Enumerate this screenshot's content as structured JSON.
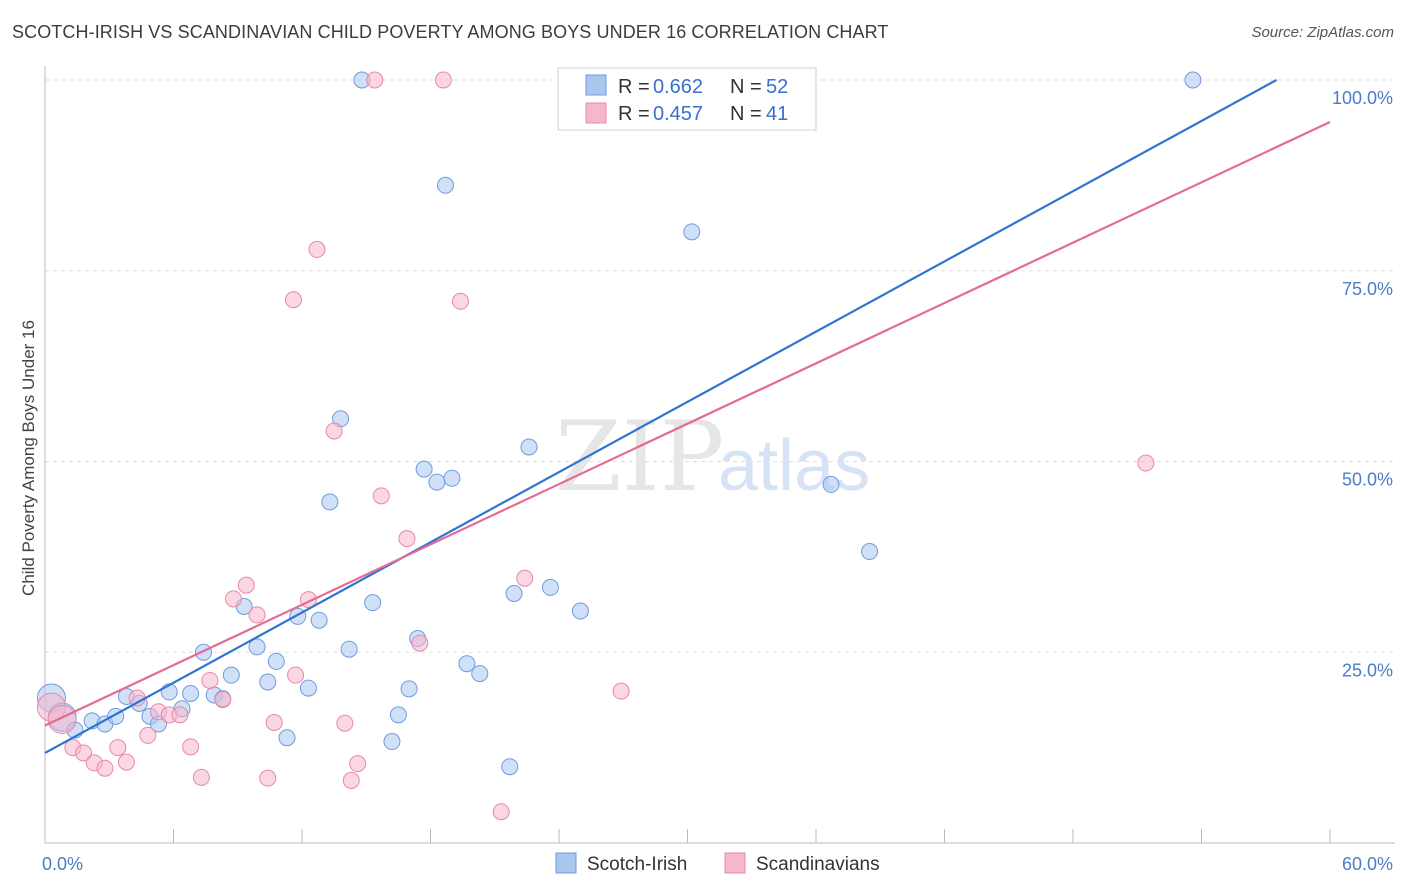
{
  "title": "SCOTCH-IRISH VS SCANDINAVIAN CHILD POVERTY AMONG BOYS UNDER 16 CORRELATION CHART",
  "source": "Source: ZipAtlas.com",
  "watermark": {
    "zip": "ZIP",
    "atlas": "atlas"
  },
  "legend": {
    "rows": [
      {
        "r_label": "R =",
        "r_value": "0.662",
        "n_label": "N =",
        "n_value": "52"
      },
      {
        "r_label": "R =",
        "r_value": "0.457",
        "n_label": "N =",
        "n_value": "41"
      }
    ]
  },
  "colors": {
    "blue_fill": "#a9c6ee",
    "blue_stroke": "#6f9be0",
    "blue_line": "#2f74d0",
    "pink_fill": "#f6b7ca",
    "pink_stroke": "#ec86a8",
    "pink_line": "#e46b97",
    "tick_text": "#4a7cc7",
    "grid": "#dddddd"
  },
  "chart_data": {
    "type": "scatter",
    "xlabel": "",
    "ylabel": "Child Poverty Among Boys Under 16",
    "xlim": [
      0,
      60
    ],
    "ylim": [
      0,
      100
    ],
    "x_tick_labels": [
      "0.0%",
      "60.0%"
    ],
    "y_ticks": [
      25,
      50,
      75,
      100
    ],
    "y_tick_labels": [
      "25.0%",
      "50.0%",
      "75.0%",
      "100.0%"
    ],
    "grid": true,
    "legend_position": "top-center",
    "series": [
      {
        "name": "Scotch-Irish",
        "r": 0.662,
        "n": 52,
        "trend": {
          "x": [
            0,
            57.5
          ],
          "y": [
            11.8,
            100
          ]
        },
        "points": [
          {
            "x": 0.3,
            "y": 19.0,
            "big": true
          },
          {
            "x": 0.8,
            "y": 16.5,
            "big": true
          },
          {
            "x": 1.4,
            "y": 14.8
          },
          {
            "x": 2.2,
            "y": 16.0
          },
          {
            "x": 2.8,
            "y": 15.6
          },
          {
            "x": 3.3,
            "y": 16.6
          },
          {
            "x": 3.8,
            "y": 19.2
          },
          {
            "x": 4.4,
            "y": 18.3
          },
          {
            "x": 4.9,
            "y": 16.6
          },
          {
            "x": 5.3,
            "y": 15.6
          },
          {
            "x": 5.8,
            "y": 19.8
          },
          {
            "x": 6.4,
            "y": 17.6
          },
          {
            "x": 6.8,
            "y": 19.6
          },
          {
            "x": 7.4,
            "y": 25.0
          },
          {
            "x": 7.9,
            "y": 19.4
          },
          {
            "x": 8.3,
            "y": 18.9
          },
          {
            "x": 8.7,
            "y": 22.0
          },
          {
            "x": 9.3,
            "y": 31.0
          },
          {
            "x": 9.9,
            "y": 25.7
          },
          {
            "x": 10.4,
            "y": 21.1
          },
          {
            "x": 10.8,
            "y": 23.8
          },
          {
            "x": 11.3,
            "y": 13.8
          },
          {
            "x": 11.8,
            "y": 29.7
          },
          {
            "x": 12.3,
            "y": 20.3
          },
          {
            "x": 12.8,
            "y": 29.2
          },
          {
            "x": 13.3,
            "y": 44.7
          },
          {
            "x": 13.8,
            "y": 55.6
          },
          {
            "x": 14.2,
            "y": 25.4
          },
          {
            "x": 14.8,
            "y": 100.0
          },
          {
            "x": 15.3,
            "y": 31.5
          },
          {
            "x": 16.2,
            "y": 13.3
          },
          {
            "x": 16.5,
            "y": 16.8
          },
          {
            "x": 17.0,
            "y": 20.2
          },
          {
            "x": 17.4,
            "y": 26.8
          },
          {
            "x": 17.7,
            "y": 49.0
          },
          {
            "x": 18.3,
            "y": 47.3
          },
          {
            "x": 18.7,
            "y": 86.2
          },
          {
            "x": 19.0,
            "y": 47.8
          },
          {
            "x": 19.7,
            "y": 23.5
          },
          {
            "x": 20.3,
            "y": 22.2
          },
          {
            "x": 21.7,
            "y": 10.0
          },
          {
            "x": 21.9,
            "y": 32.7
          },
          {
            "x": 22.6,
            "y": 51.9
          },
          {
            "x": 23.6,
            "y": 33.5
          },
          {
            "x": 25.0,
            "y": 30.4
          },
          {
            "x": 25.3,
            "y": 100.0
          },
          {
            "x": 30.2,
            "y": 80.1
          },
          {
            "x": 36.7,
            "y": 47.0
          },
          {
            "x": 38.5,
            "y": 38.2
          },
          {
            "x": 53.6,
            "y": 100.0
          }
        ]
      },
      {
        "name": "Scandinavians",
        "r": 0.457,
        "n": 41,
        "trend": {
          "x": [
            0,
            60
          ],
          "y": [
            15.4,
            94.5
          ]
        },
        "points": [
          {
            "x": 0.3,
            "y": 17.8,
            "big": true
          },
          {
            "x": 0.8,
            "y": 16.2,
            "big": true
          },
          {
            "x": 1.3,
            "y": 12.5
          },
          {
            "x": 1.8,
            "y": 11.8
          },
          {
            "x": 2.3,
            "y": 10.5
          },
          {
            "x": 2.8,
            "y": 9.8
          },
          {
            "x": 3.4,
            "y": 12.5
          },
          {
            "x": 3.8,
            "y": 10.6
          },
          {
            "x": 4.3,
            "y": 19.0
          },
          {
            "x": 4.8,
            "y": 14.1
          },
          {
            "x": 5.3,
            "y": 17.2
          },
          {
            "x": 5.8,
            "y": 16.8
          },
          {
            "x": 6.3,
            "y": 16.8
          },
          {
            "x": 6.8,
            "y": 12.6
          },
          {
            "x": 7.3,
            "y": 8.6
          },
          {
            "x": 7.7,
            "y": 21.3
          },
          {
            "x": 8.3,
            "y": 18.8
          },
          {
            "x": 8.8,
            "y": 32.0
          },
          {
            "x": 9.4,
            "y": 33.8
          },
          {
            "x": 9.9,
            "y": 29.9
          },
          {
            "x": 10.4,
            "y": 8.5
          },
          {
            "x": 10.7,
            "y": 15.8
          },
          {
            "x": 11.6,
            "y": 71.2
          },
          {
            "x": 11.7,
            "y": 22.0
          },
          {
            "x": 12.3,
            "y": 31.9
          },
          {
            "x": 12.7,
            "y": 77.8
          },
          {
            "x": 13.5,
            "y": 54.0
          },
          {
            "x": 14.0,
            "y": 15.7
          },
          {
            "x": 14.3,
            "y": 8.2
          },
          {
            "x": 14.6,
            "y": 10.4
          },
          {
            "x": 15.4,
            "y": 100.0
          },
          {
            "x": 15.7,
            "y": 45.5
          },
          {
            "x": 16.9,
            "y": 39.9
          },
          {
            "x": 17.5,
            "y": 26.2
          },
          {
            "x": 18.6,
            "y": 100.0
          },
          {
            "x": 19.4,
            "y": 71.0
          },
          {
            "x": 21.3,
            "y": 4.1
          },
          {
            "x": 22.4,
            "y": 34.7
          },
          {
            "x": 26.9,
            "y": 19.9
          },
          {
            "x": 51.4,
            "y": 49.8
          }
        ]
      }
    ]
  }
}
